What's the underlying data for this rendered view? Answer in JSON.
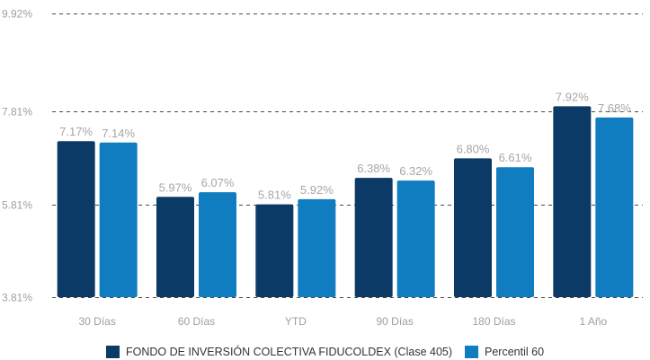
{
  "chart_data": {
    "type": "bar",
    "categories": [
      "30 Días",
      "60 Días",
      "YTD",
      "90 Días",
      "180 Días",
      "1 Año"
    ],
    "series": [
      {
        "name": "FONDO DE INVERSIÓN COLECTIVA FIDUCOLDEX (Clase 405)",
        "color": "#0b3a66",
        "values": [
          7.17,
          5.97,
          5.81,
          6.38,
          6.8,
          7.92
        ],
        "labels": [
          "7.17%",
          "5.97%",
          "5.81%",
          "6.38%",
          "6.80%",
          "7.92%"
        ]
      },
      {
        "name": "Percentil 60",
        "color": "#0f7dbf",
        "values": [
          7.14,
          6.07,
          5.92,
          6.32,
          6.61,
          7.68
        ],
        "labels": [
          "7.14%",
          "6.07%",
          "5.92%",
          "6.32%",
          "6.61%",
          "7.68%"
        ]
      }
    ],
    "yticks": [
      3.81,
      5.81,
      7.81,
      9.92
    ],
    "ytick_labels": [
      "3.81%",
      "5.81%",
      "7.81%",
      "9.92%"
    ],
    "ylim": [
      3.81,
      9.92
    ],
    "grid": "dashed horizontal",
    "legend_position": "bottom-center"
  }
}
